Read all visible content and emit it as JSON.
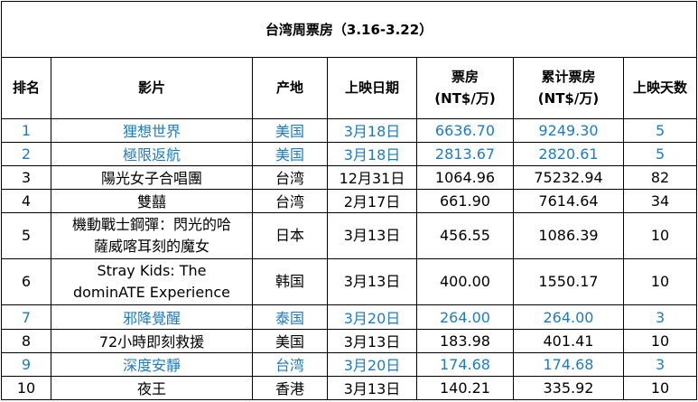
{
  "title": "台湾周票房（3.16-3.22）",
  "headers": {
    "rank": "排名",
    "film": "影片",
    "origin": "产地",
    "release": "上映日期",
    "box_line1": "票房",
    "box_line2": "(NT$/万)",
    "total_line1": "累计票房",
    "total_line2": "(NT$/万)",
    "days": "上映天数"
  },
  "colors": {
    "highlight": "#1f7bbd",
    "text": "#000000",
    "border": "#000000"
  },
  "rows": [
    {
      "rank": "1",
      "film": "狸想世界",
      "origin": "美国",
      "release": "3月18日",
      "box": "6636.70",
      "total": "9249.30",
      "days": "5",
      "highlight": true
    },
    {
      "rank": "2",
      "film": "極限返航",
      "origin": "美国",
      "release": "3月18日",
      "box": "2813.67",
      "total": "2820.61",
      "days": "5",
      "highlight": true
    },
    {
      "rank": "3",
      "film": "陽光女子合唱團",
      "origin": "台湾",
      "release": "12月31日",
      "box": "1064.96",
      "total": "75232.94",
      "days": "82",
      "highlight": false
    },
    {
      "rank": "4",
      "film": "雙囍",
      "origin": "台湾",
      "release": "2月17日",
      "box": "661.90",
      "total": "7614.64",
      "days": "34",
      "highlight": false
    },
    {
      "rank": "5",
      "film_line1": "機動戰士鋼彈：閃光的哈",
      "film_line2": "薩威喀耳刻的魔女",
      "origin": "日本",
      "release": "3月13日",
      "box": "456.55",
      "total": "1086.39",
      "days": "10",
      "highlight": false
    },
    {
      "rank": "6",
      "film_line1": "Stray Kids: The",
      "film_line2": "dominATE Experience",
      "origin": "韩国",
      "release": "3月13日",
      "box": "400.00",
      "total": "1550.17",
      "days": "10",
      "highlight": false
    },
    {
      "rank": "7",
      "film": "邪降覺醒",
      "origin": "泰国",
      "release": "3月20日",
      "box": "264.00",
      "total": "264.00",
      "days": "3",
      "highlight": true
    },
    {
      "rank": "8",
      "film": "72小時即刻救援",
      "origin": "美国",
      "release": "3月13日",
      "box": "183.98",
      "total": "401.41",
      "days": "10",
      "highlight": false
    },
    {
      "rank": "9",
      "film": "深度安靜",
      "origin": "台湾",
      "release": "3月20日",
      "box": "174.68",
      "total": "174.68",
      "days": "3",
      "highlight": true
    },
    {
      "rank": "10",
      "film": "夜王",
      "origin": "香港",
      "release": "3月13日",
      "box": "140.21",
      "total": "335.92",
      "days": "10",
      "highlight": false
    }
  ]
}
